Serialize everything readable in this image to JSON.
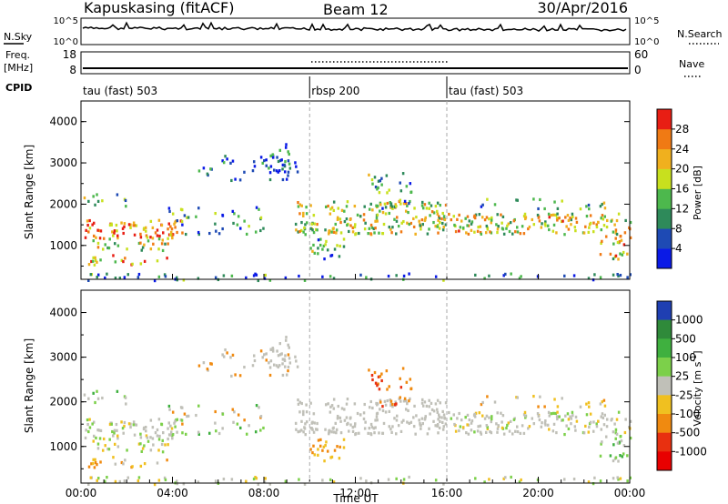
{
  "header": {
    "station": "Kapuskasing (fitACF)",
    "beam": "Beam 12",
    "date": "30/Apr/2016"
  },
  "aux_panels": {
    "nsky_label": "N.Sky",
    "nsearch_label": "N.Search",
    "noise_left_ticks": [
      "10^5",
      "10^0"
    ],
    "noise_right_ticks": [
      "10^5",
      "10^0"
    ],
    "freq_label_top": "Freq.",
    "freq_label_unit": "[MHz]",
    "freq_ticks": [
      "18",
      "8"
    ],
    "nave_label": "Nave",
    "nave_ticks": [
      "60",
      "0"
    ],
    "cpid_label": "CPID",
    "cpid_segments": [
      {
        "label": "tau (fast) 503",
        "start_hour": 0,
        "end_hour": 10
      },
      {
        "label": "rbsp 200",
        "start_hour": 10,
        "end_hour": 16
      },
      {
        "label": "tau (fast) 503",
        "start_hour": 16,
        "end_hour": 24
      }
    ]
  },
  "chart_data": [
    {
      "type": "heatmap",
      "panel": "power",
      "ylabel": "Slant Range [km]",
      "xlabel": "",
      "yticks": [
        "1000",
        "2000",
        "3000",
        "4000"
      ],
      "ylim": [
        180,
        4500
      ],
      "colorbar": {
        "label": "Power [dB]",
        "ticks": [
          "4",
          "8",
          "12",
          "16",
          "20",
          "24",
          "28"
        ],
        "colors": [
          "#0a1ae6",
          "#1e4ab4",
          "#2e8a5a",
          "#4db84d",
          "#c8e01e",
          "#f0b01e",
          "#f07a14",
          "#e81e14"
        ]
      }
    },
    {
      "type": "heatmap",
      "panel": "velocity",
      "ylabel": "Slant Range [km]",
      "xlabel": "Time UT",
      "xticks": [
        "00:00",
        "04:00",
        "08:00",
        "12:00",
        "16:00",
        "20:00",
        "00:00"
      ],
      "yticks": [
        "1000",
        "2000",
        "3000",
        "4000"
      ],
      "ylim": [
        180,
        4500
      ],
      "colorbar": {
        "label": "Velocity [m s",
        "label_sup": "-1",
        "label_end": "]",
        "ticks": [
          "1000",
          "500",
          "100",
          "25",
          "-25",
          "-100",
          "-500",
          "-1000"
        ],
        "colors": [
          "#1f3fb2",
          "#2f8a3a",
          "#3fb03f",
          "#7cd04a",
          "#c0c0b8",
          "#f0c020",
          "#f08a10",
          "#e83010",
          "#e80000"
        ]
      }
    }
  ]
}
